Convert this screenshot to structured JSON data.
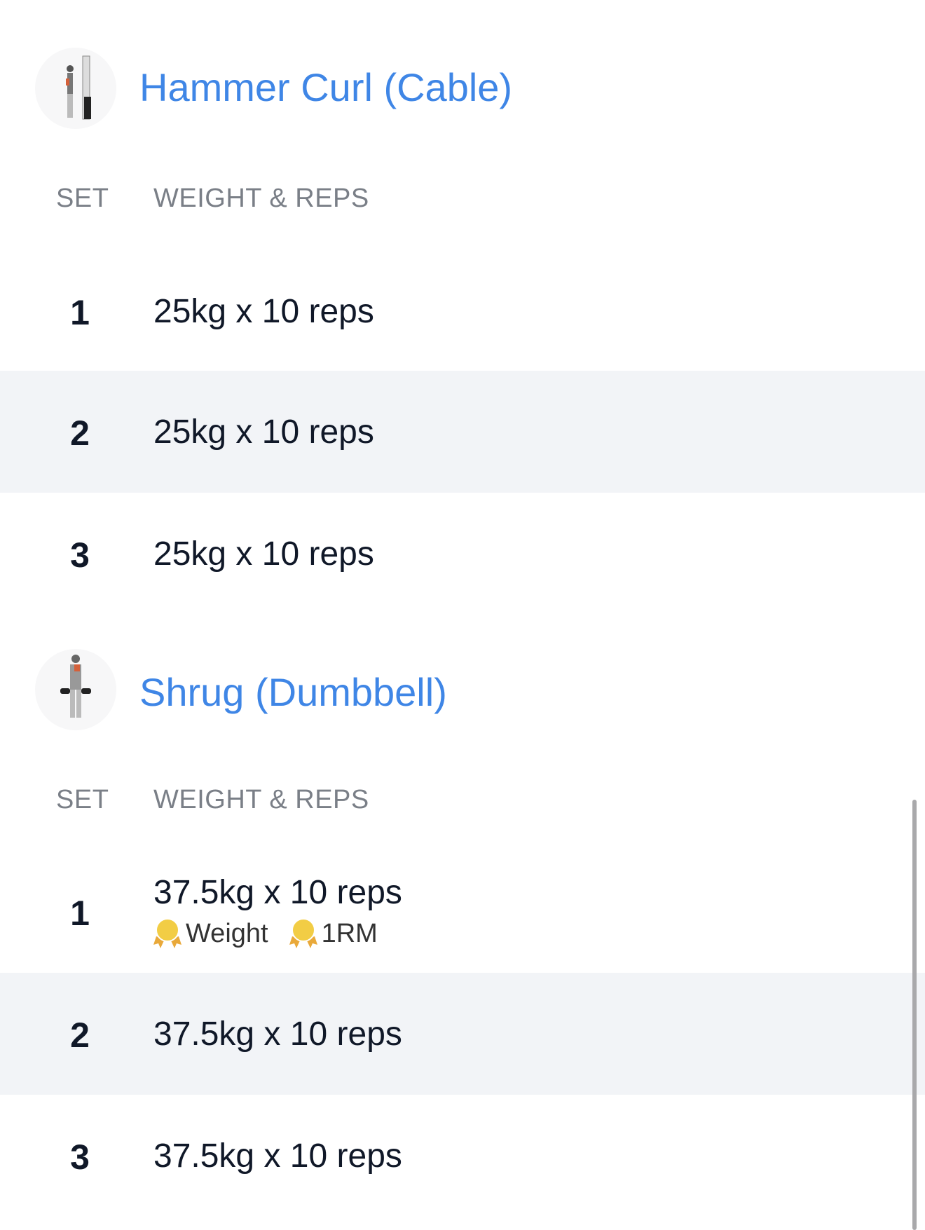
{
  "exercises": [
    {
      "title": "Hammer Curl (Cable)",
      "thumbnail_icon": "cable-hammer-curl-illustration",
      "columns": {
        "set": "SET",
        "weight_reps": "WEIGHT & REPS"
      },
      "sets": [
        {
          "set": "1",
          "value": "25kg x 10 reps"
        },
        {
          "set": "2",
          "value": "25kg x 10 reps"
        },
        {
          "set": "3",
          "value": "25kg x 10 reps"
        }
      ]
    },
    {
      "title": "Shrug (Dumbbell)",
      "thumbnail_icon": "dumbbell-shrug-illustration",
      "columns": {
        "set": "SET",
        "weight_reps": "WEIGHT & REPS"
      },
      "sets": [
        {
          "set": "1",
          "value": "37.5kg x 10 reps",
          "records": [
            {
              "icon": "medal-icon",
              "label": "Weight"
            },
            {
              "icon": "medal-icon",
              "label": "1RM"
            }
          ]
        },
        {
          "set": "2",
          "value": "37.5kg x 10 reps"
        },
        {
          "set": "3",
          "value": "37.5kg x 10 reps"
        }
      ]
    }
  ],
  "colors": {
    "accent": "#3f86e6",
    "alt_row": "#f2f4f7",
    "medal": "#f2cd45",
    "ribbon": "#e9a93a"
  }
}
